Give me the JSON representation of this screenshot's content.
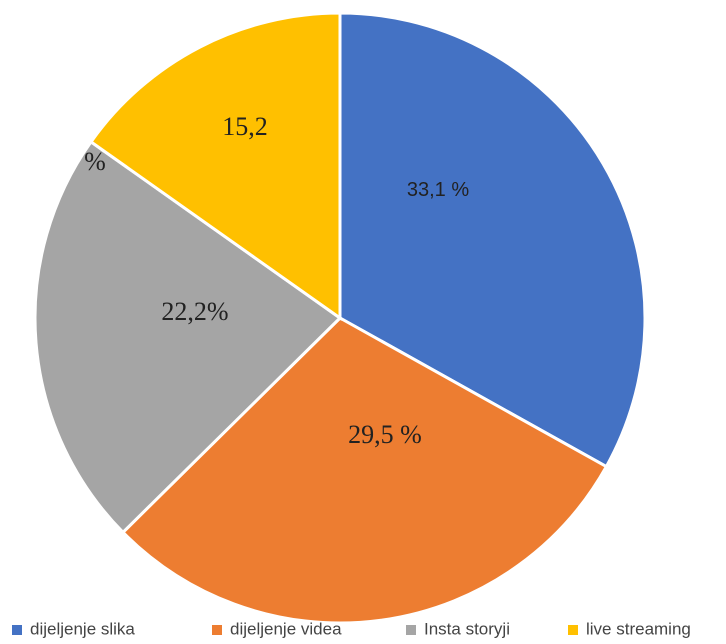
{
  "chart_data": {
    "type": "pie",
    "categories": [
      "dijeljenje slika",
      "dijeljenje videa",
      "Insta storyji",
      "live streaming"
    ],
    "values": [
      33.1,
      29.5,
      22.2,
      15.2
    ],
    "value_labels": [
      "33,1 %",
      "29,5 %",
      "22,2%",
      "15,2"
    ],
    "annotations": [
      "%"
    ],
    "colors": [
      "#4472c4",
      "#ed7d31",
      "#a5a5a5",
      "#ffc000"
    ],
    "legend": "bottom"
  }
}
